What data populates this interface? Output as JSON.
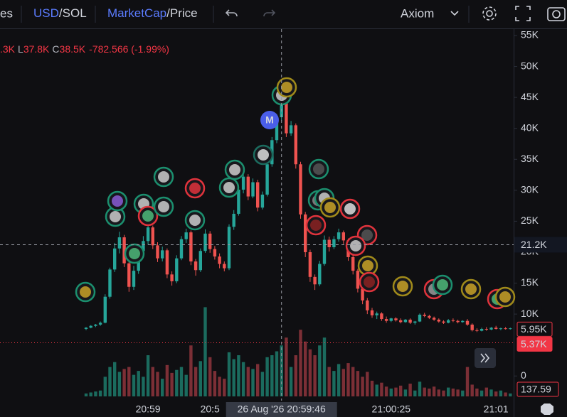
{
  "toolbar": {
    "left_cut": "es",
    "currency": [
      "USD",
      "/SOL"
    ],
    "mode": [
      "MarketCap",
      "/Price"
    ],
    "source": "Axiom"
  },
  "ohlc_legend": [
    ".3K",
    "L",
    "37.8K",
    "C",
    "38.5K",
    "-782.566 (-1.99%)"
  ],
  "marker_label": "M",
  "chart_data": {
    "type": "candlestick",
    "up_color": "#26a69a",
    "down_color": "#ef5350",
    "ylim": [
      -3.3,
      55
    ],
    "yticks": [
      {
        "value": 55,
        "label": "55K"
      },
      {
        "value": 50,
        "label": "50K"
      },
      {
        "value": 45,
        "label": "45K"
      },
      {
        "value": 40,
        "label": "40K"
      },
      {
        "value": 35,
        "label": "35K"
      },
      {
        "value": 30,
        "label": "30K"
      },
      {
        "value": 25,
        "label": "25K"
      },
      {
        "value": 20,
        "label": "20K"
      },
      {
        "value": 15,
        "label": "15K"
      },
      {
        "value": 10,
        "label": "10K"
      },
      0
    ],
    "grid": false,
    "categories": [
      null,
      null,
      null,
      null,
      null,
      null,
      null,
      null,
      null,
      null,
      null,
      null,
      null,
      "20:59",
      null,
      null,
      null,
      null,
      null,
      null,
      null,
      null,
      null,
      null,
      null,
      null,
      "20:5",
      null,
      null,
      null,
      null,
      null,
      null,
      null,
      null,
      null,
      null,
      null,
      null,
      null,
      null,
      null,
      null,
      null,
      null,
      null,
      null,
      null,
      null,
      null,
      null,
      null,
      null,
      null,
      null,
      null,
      null,
      null,
      null,
      null,
      null,
      null,
      null,
      null,
      "21:00:25",
      null,
      null,
      null,
      null,
      null,
      null,
      null,
      null,
      null,
      null,
      null,
      null,
      null,
      null,
      null,
      null,
      null,
      null,
      null,
      null,
      null,
      "21:01",
      null,
      null,
      null
    ],
    "ohlc": [
      [
        7.6,
        7.9,
        7.4,
        7.8
      ],
      [
        7.8,
        8.2,
        7.7,
        8.1
      ],
      [
        8.1,
        8.4,
        7.9,
        8.3
      ],
      [
        8.3,
        8.8,
        8.1,
        8.6
      ],
      [
        8.6,
        13.2,
        8.5,
        12.8
      ],
      [
        12.8,
        17.5,
        12.5,
        17.2
      ],
      [
        17.2,
        21.5,
        16.8,
        20.6
      ],
      [
        20.6,
        23.3,
        19.8,
        22.4
      ],
      [
        22.4,
        22.8,
        17.6,
        18.2
      ],
      [
        18.2,
        18.6,
        13.6,
        14.4
      ],
      [
        14.4,
        17.8,
        13.9,
        17.0
      ],
      [
        17.0,
        20.8,
        16.5,
        20.2
      ],
      [
        20.2,
        22.6,
        19.4,
        21.8
      ],
      [
        21.8,
        24.7,
        21.2,
        24.0
      ],
      [
        24.0,
        24.3,
        20.5,
        21.1
      ],
      [
        21.1,
        21.6,
        18.4,
        19.0
      ],
      [
        19.0,
        20.9,
        18.5,
        20.3
      ],
      [
        20.3,
        20.6,
        15.8,
        16.4
      ],
      [
        16.4,
        16.9,
        14.6,
        15.3
      ],
      [
        15.3,
        19.5,
        15.0,
        19.0
      ],
      [
        19.0,
        22.6,
        18.7,
        22.1
      ],
      [
        22.1,
        23.8,
        21.5,
        23.2
      ],
      [
        23.2,
        23.5,
        17.9,
        18.5
      ],
      [
        18.5,
        18.9,
        16.2,
        17.1
      ],
      [
        17.1,
        20.6,
        16.8,
        20.2
      ],
      [
        20.2,
        23.7,
        19.9,
        23.0
      ],
      [
        23.0,
        23.4,
        19.9,
        20.5
      ],
      [
        20.5,
        21.0,
        18.8,
        19.3
      ],
      [
        19.3,
        19.8,
        17.4,
        18.1
      ],
      [
        18.1,
        18.5,
        16.9,
        17.4
      ],
      [
        17.4,
        24.5,
        17.1,
        24.1
      ],
      [
        24.1,
        26.8,
        23.6,
        26.2
      ],
      [
        26.2,
        30.8,
        25.9,
        30.1
      ],
      [
        30.1,
        32.9,
        29.5,
        32.2
      ],
      [
        32.2,
        32.6,
        28.4,
        29.0
      ],
      [
        29.0,
        31.9,
        28.7,
        31.3
      ],
      [
        31.3,
        31.7,
        26.6,
        27.2
      ],
      [
        27.2,
        29.8,
        26.9,
        29.3
      ],
      [
        29.3,
        34.8,
        29.0,
        34.2
      ],
      [
        34.2,
        38.6,
        33.8,
        38.1
      ],
      [
        38.1,
        42.3,
        37.6,
        41.8
      ],
      [
        41.8,
        46.5,
        41.2,
        45.6
      ],
      [
        45.6,
        45.9,
        38.6,
        39.2
      ],
      [
        39.2,
        41.2,
        38.8,
        40.5
      ],
      [
        40.5,
        40.8,
        33.5,
        34.2
      ],
      [
        34.2,
        34.6,
        25.4,
        26.1
      ],
      [
        26.1,
        26.5,
        19.2,
        20.0
      ],
      [
        20.0,
        20.4,
        15.2,
        16.0
      ],
      [
        16.0,
        16.4,
        13.9,
        14.8
      ],
      [
        14.8,
        18.6,
        14.5,
        18.1
      ],
      [
        18.1,
        22.7,
        17.8,
        22.0
      ],
      [
        22.0,
        22.5,
        20.1,
        20.8
      ],
      [
        20.8,
        22.6,
        20.5,
        22.1
      ],
      [
        22.1,
        23.8,
        21.7,
        23.2
      ],
      [
        23.2,
        23.5,
        21.3,
        21.9
      ],
      [
        21.9,
        22.2,
        18.6,
        19.2
      ],
      [
        19.2,
        19.5,
        16.4,
        17.0
      ],
      [
        17.0,
        17.3,
        13.5,
        14.1
      ],
      [
        14.1,
        14.4,
        11.6,
        12.2
      ],
      [
        12.2,
        12.6,
        10.0,
        10.6
      ],
      [
        10.6,
        11.0,
        9.4,
        9.8
      ],
      [
        9.8,
        10.4,
        9.2,
        10.1
      ],
      [
        10.1,
        10.3,
        8.9,
        9.2
      ],
      [
        9.2,
        9.6,
        8.6,
        8.9
      ],
      [
        8.9,
        9.4,
        8.7,
        9.3
      ],
      [
        9.3,
        9.5,
        8.8,
        9.0
      ],
      [
        9.0,
        9.3,
        8.5,
        8.7
      ],
      [
        8.7,
        9.2,
        8.6,
        9.1
      ],
      [
        9.1,
        9.3,
        8.4,
        8.6
      ],
      [
        8.6,
        8.9,
        8.3,
        8.8
      ],
      [
        8.8,
        10.1,
        8.7,
        9.9
      ],
      [
        9.9,
        10.2,
        9.5,
        9.7
      ],
      [
        9.7,
        9.9,
        9.2,
        9.4
      ],
      [
        9.4,
        9.6,
        8.9,
        9.1
      ],
      [
        9.1,
        9.3,
        8.6,
        8.8
      ],
      [
        8.8,
        9.0,
        8.4,
        8.6
      ],
      [
        8.6,
        9.2,
        8.5,
        9.0
      ],
      [
        9.0,
        9.3,
        8.7,
        8.9
      ],
      [
        8.9,
        9.1,
        8.5,
        8.7
      ],
      [
        8.7,
        9.0,
        8.6,
        8.9
      ],
      [
        8.9,
        9.2,
        8.1,
        8.3
      ],
      [
        8.3,
        8.5,
        7.2,
        7.4
      ],
      [
        7.4,
        7.7,
        7.1,
        7.3
      ],
      [
        7.3,
        7.8,
        7.2,
        7.6
      ],
      [
        7.6,
        7.9,
        7.3,
        7.5
      ],
      [
        7.5,
        7.9,
        7.4,
        7.8
      ],
      [
        7.8,
        8.1,
        7.5,
        7.6
      ],
      [
        7.6,
        7.8,
        7.4,
        7.7
      ],
      [
        7.7,
        7.9,
        7.5,
        7.6
      ],
      [
        7.6,
        7.8,
        7.5,
        7.7
      ]
    ],
    "volume_ylim": [
      0,
      1000
    ],
    "volume": [
      30,
      40,
      50,
      60,
      200,
      300,
      350,
      250,
      280,
      300,
      220,
      260,
      200,
      420,
      300,
      250,
      180,
      320,
      240,
      270,
      300,
      220,
      520,
      300,
      360,
      910,
      400,
      260,
      200,
      180,
      450,
      380,
      420,
      350,
      300,
      280,
      330,
      250,
      400,
      420,
      460,
      520,
      600,
      300,
      420,
      680,
      560,
      480,
      420,
      520,
      600,
      300,
      260,
      330,
      280,
      340,
      300,
      260,
      200,
      250,
      160,
      120,
      140,
      100,
      80,
      90,
      110,
      70,
      130,
      60,
      150,
      90,
      80,
      100,
      70,
      60,
      90,
      80,
      70,
      60,
      300,
      120,
      80,
      60,
      90,
      70,
      50,
      60,
      40,
      30
    ],
    "crosshair": {
      "value": 21.2,
      "label": "21.2K",
      "index": 41,
      "x_label": "26 Aug '26  20:59:46"
    },
    "price_lines": [
      {
        "value": 5.95,
        "label": "5.95K",
        "filled": false,
        "dotted": false
      },
      {
        "value": 5.37,
        "label": "5.37K",
        "filled": true,
        "dotted": true
      }
    ],
    "volume_label": "137.59"
  }
}
